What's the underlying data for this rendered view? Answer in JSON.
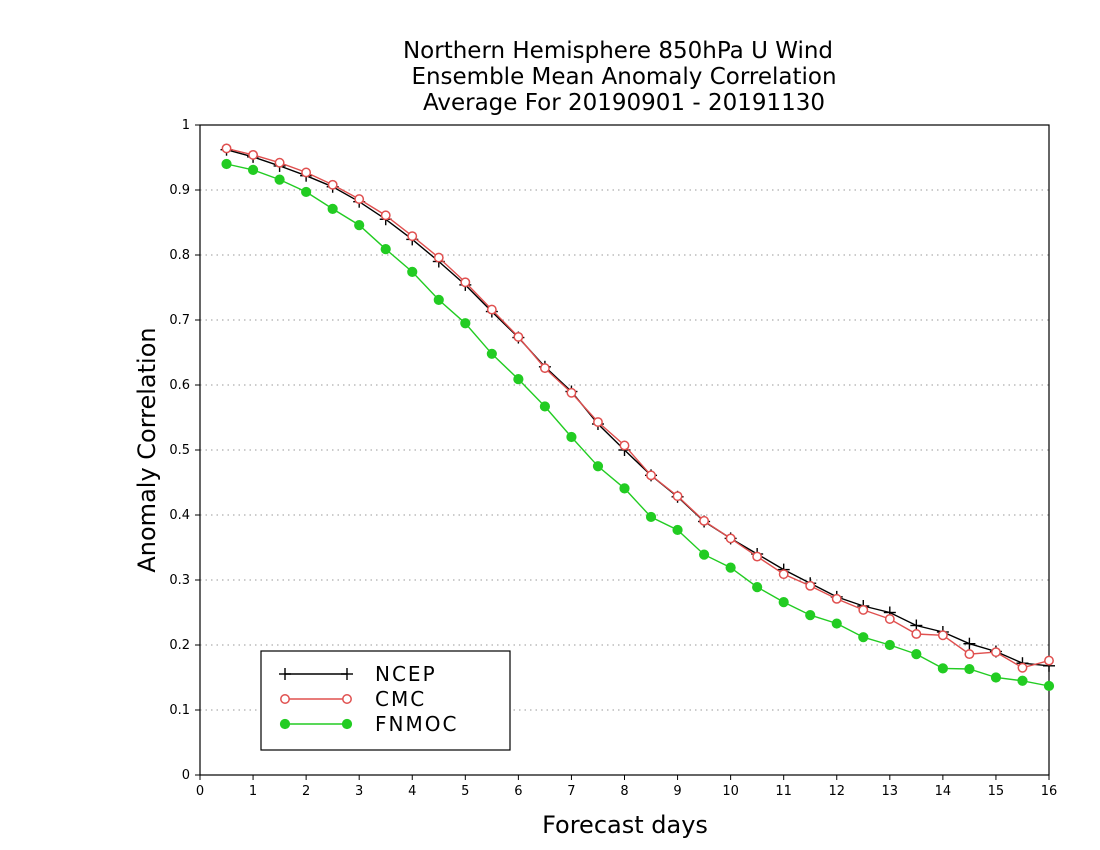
{
  "chart_data": {
    "type": "line",
    "title": [
      "Northern Hemisphere 850hPa U Wind",
      "Ensemble Mean Anomaly Correlation",
      "Average For 20190901 - 20191130"
    ],
    "xlabel": "Forecast days",
    "ylabel": "Anomaly Correlation",
    "xlim": [
      0,
      16
    ],
    "ylim": [
      0,
      1
    ],
    "xticks": [
      "0",
      "1",
      "2",
      "3",
      "4",
      "5",
      "6",
      "7",
      "8",
      "9",
      "10",
      "11",
      "12",
      "13",
      "14",
      "15",
      "16"
    ],
    "yticks": [
      "0",
      "0.1",
      "0.2",
      "0.3",
      "0.4",
      "0.5",
      "0.6",
      "0.7",
      "0.8",
      "0.9",
      "1"
    ],
    "grid": "horizontal dotted",
    "legend_position": "bottom-left",
    "x": [
      0.5,
      1,
      1.5,
      2,
      2.5,
      3,
      3.5,
      4,
      4.5,
      5,
      5.5,
      6,
      6.5,
      7,
      7.5,
      8,
      8.5,
      9,
      9.5,
      10,
      10.5,
      11,
      11.5,
      12,
      12.5,
      13,
      13.5,
      14,
      14.5,
      15,
      15.5,
      16
    ],
    "series": [
      {
        "name": "NCEP",
        "color": "#000000",
        "marker": "plus",
        "values": [
          0.962,
          0.951,
          0.937,
          0.922,
          0.905,
          0.882,
          0.855,
          0.824,
          0.79,
          0.754,
          0.713,
          0.673,
          0.628,
          0.59,
          0.54,
          0.5,
          0.461,
          0.428,
          0.39,
          0.364,
          0.34,
          0.316,
          0.295,
          0.274,
          0.26,
          0.25,
          0.23,
          0.22,
          0.202,
          0.19,
          0.172,
          0.168
        ]
      },
      {
        "name": "CMC",
        "color": "#e0504f",
        "marker": "open-circle",
        "values": [
          0.964,
          0.954,
          0.942,
          0.927,
          0.908,
          0.886,
          0.861,
          0.829,
          0.796,
          0.758,
          0.716,
          0.674,
          0.626,
          0.588,
          0.543,
          0.507,
          0.461,
          0.429,
          0.391,
          0.364,
          0.336,
          0.309,
          0.291,
          0.271,
          0.254,
          0.24,
          0.217,
          0.215,
          0.186,
          0.189,
          0.165,
          0.176
        ]
      },
      {
        "name": "FNMOC",
        "color": "#22cc22",
        "marker": "filled-circle",
        "values": [
          0.94,
          0.931,
          0.916,
          0.897,
          0.871,
          0.846,
          0.809,
          0.774,
          0.731,
          0.695,
          0.648,
          0.609,
          0.567,
          0.52,
          0.475,
          0.441,
          0.397,
          0.377,
          0.339,
          0.319,
          0.289,
          0.266,
          0.246,
          0.233,
          0.212,
          0.2,
          0.186,
          0.164,
          0.163,
          0.15,
          0.145,
          0.137
        ]
      }
    ]
  }
}
